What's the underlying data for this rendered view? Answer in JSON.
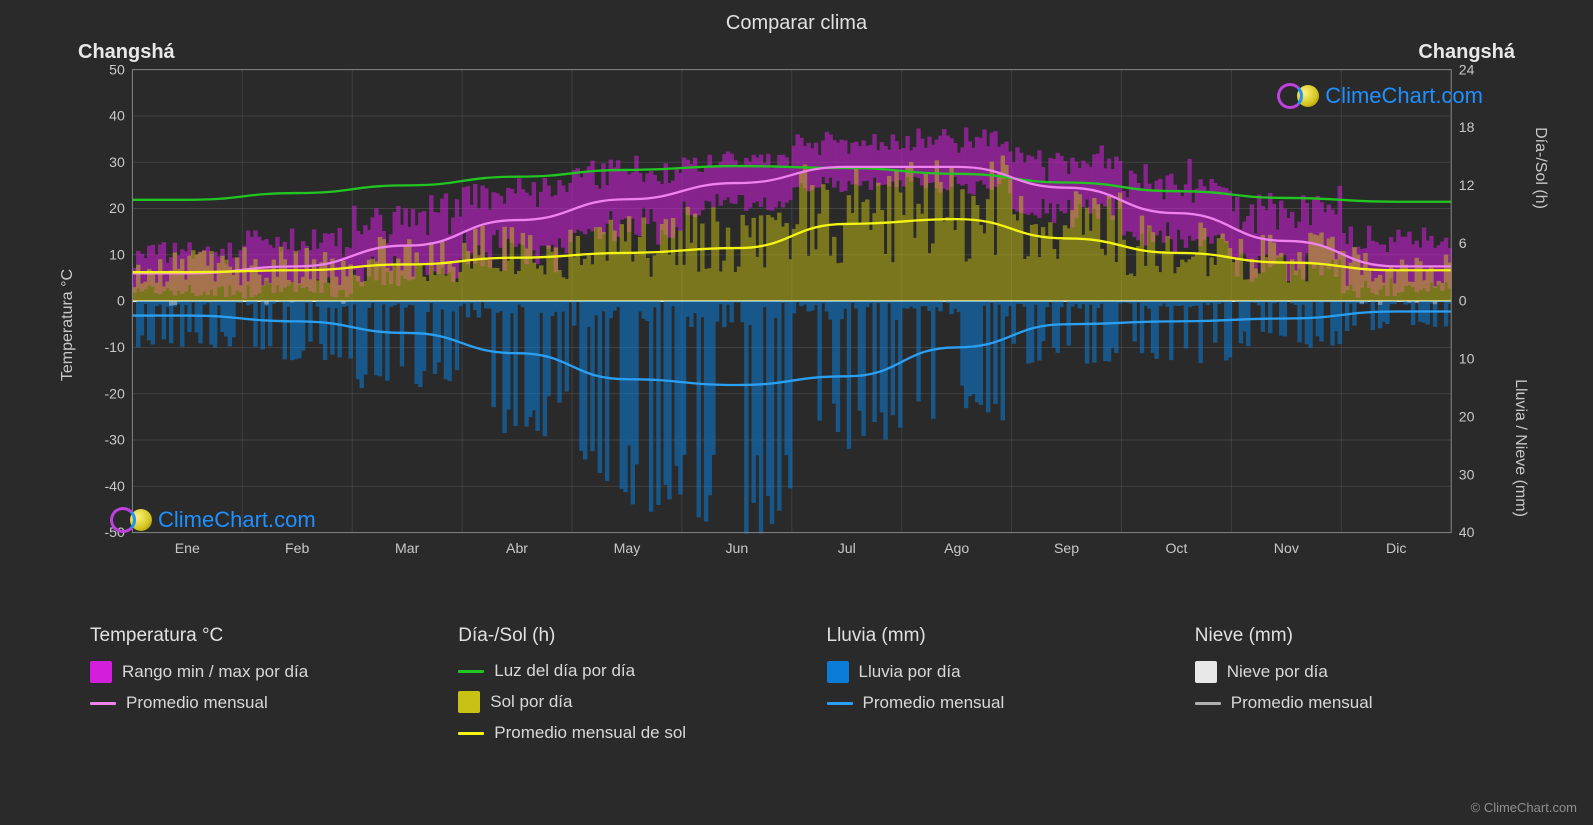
{
  "title": "Comparar clima",
  "city": "Changshá",
  "watermark_text": "ClimeChart.com",
  "copyright": "© ClimeChart.com",
  "background_color": "#2a2a2a",
  "grid_color": "#555555",
  "axis_text_color": "#c8c8c8",
  "left_axis": {
    "label": "Temperatura °C",
    "min": -50,
    "max": 50,
    "step": 10,
    "ticks": [
      50,
      40,
      30,
      20,
      10,
      0,
      -10,
      -20,
      -30,
      -40,
      -50
    ]
  },
  "right_axis_top": {
    "label": "Día-/Sol (h)",
    "min": 0,
    "max": 24,
    "step": 6,
    "ticks": [
      24,
      18,
      12,
      6,
      0
    ]
  },
  "right_axis_bottom": {
    "label": "Lluvia / Nieve (mm)",
    "min": 0,
    "max": 40,
    "step": 10,
    "ticks": [
      0,
      10,
      20,
      30,
      40
    ]
  },
  "months": [
    "Ene",
    "Feb",
    "Mar",
    "Abr",
    "May",
    "Jun",
    "Jul",
    "Ago",
    "Sep",
    "Oct",
    "Nov",
    "Dic"
  ],
  "series": {
    "temp_range": {
      "color_fill": "#d31edc",
      "glow": "#ff2af3",
      "monthly_min": [
        3,
        4,
        8,
        13,
        18,
        22,
        26,
        26,
        21,
        15,
        9,
        4
      ],
      "monthly_max": [
        9,
        11,
        16,
        22,
        26,
        29,
        33,
        33,
        28,
        23,
        17,
        11
      ],
      "scatter_low": [
        1,
        1,
        4,
        8,
        13,
        19,
        24,
        23,
        17,
        11,
        5,
        1
      ],
      "scatter_high": [
        12,
        15,
        22,
        27,
        30,
        32,
        36,
        37,
        33,
        29,
        23,
        15
      ]
    },
    "temp_avg_line": {
      "color": "#ee82ee",
      "values": [
        6,
        7.5,
        12,
        17.5,
        22,
        25.5,
        29,
        29,
        24.5,
        19,
        13,
        7.5
      ]
    },
    "daylight_line": {
      "color": "#22c622",
      "values": [
        10.5,
        11.2,
        12,
        12.9,
        13.6,
        14,
        13.8,
        13.2,
        12.3,
        11.4,
        10.7,
        10.3
      ]
    },
    "sun_bars": {
      "color_fill": "#c8c214",
      "values": [
        3.0,
        3.2,
        3.8,
        4.5,
        5.0,
        5.5,
        8.0,
        8.5,
        6.5,
        5.0,
        4.0,
        3.2
      ]
    },
    "sun_avg_line": {
      "color": "#f5f514",
      "values": [
        3.0,
        3.2,
        3.8,
        4.5,
        5.0,
        5.5,
        8.0,
        8.5,
        6.5,
        5.0,
        4.0,
        3.2
      ]
    },
    "rain_bars": {
      "color_fill": "#0b7dd8",
      "values": [
        3,
        4,
        6,
        9,
        14,
        15,
        10,
        8,
        4,
        4,
        3,
        2
      ]
    },
    "rain_avg_line": {
      "color": "#2aa0f5",
      "values": [
        2.5,
        3.5,
        5.5,
        9,
        13.5,
        14.5,
        13,
        8,
        4,
        3.5,
        3,
        1.8
      ]
    },
    "snow_bars": {
      "color_fill": "#e8e8e8",
      "values": [
        0.2,
        0.1,
        0,
        0,
        0,
        0,
        0,
        0,
        0,
        0,
        0,
        0.1
      ]
    }
  },
  "legend": {
    "groups": [
      {
        "title": "Temperatura °C",
        "items": [
          {
            "type": "box",
            "color": "#d31edc",
            "label": "Rango min / max por día"
          },
          {
            "type": "line",
            "color": "#ee82ee",
            "label": "Promedio mensual"
          }
        ]
      },
      {
        "title": "Día-/Sol (h)",
        "items": [
          {
            "type": "line",
            "color": "#22c622",
            "label": "Luz del día por día"
          },
          {
            "type": "box",
            "color": "#c8c214",
            "label": "Sol por día"
          },
          {
            "type": "line",
            "color": "#f5f514",
            "label": "Promedio mensual de sol"
          }
        ]
      },
      {
        "title": "Lluvia (mm)",
        "items": [
          {
            "type": "box",
            "color": "#0b7dd8",
            "label": "Lluvia por día"
          },
          {
            "type": "line",
            "color": "#2aa0f5",
            "label": "Promedio mensual"
          }
        ]
      },
      {
        "title": "Nieve (mm)",
        "items": [
          {
            "type": "box",
            "color": "#e8e8e8",
            "label": "Nieve por día"
          },
          {
            "type": "line",
            "color": "#b0b0b0",
            "label": "Promedio mensual"
          }
        ]
      }
    ]
  }
}
